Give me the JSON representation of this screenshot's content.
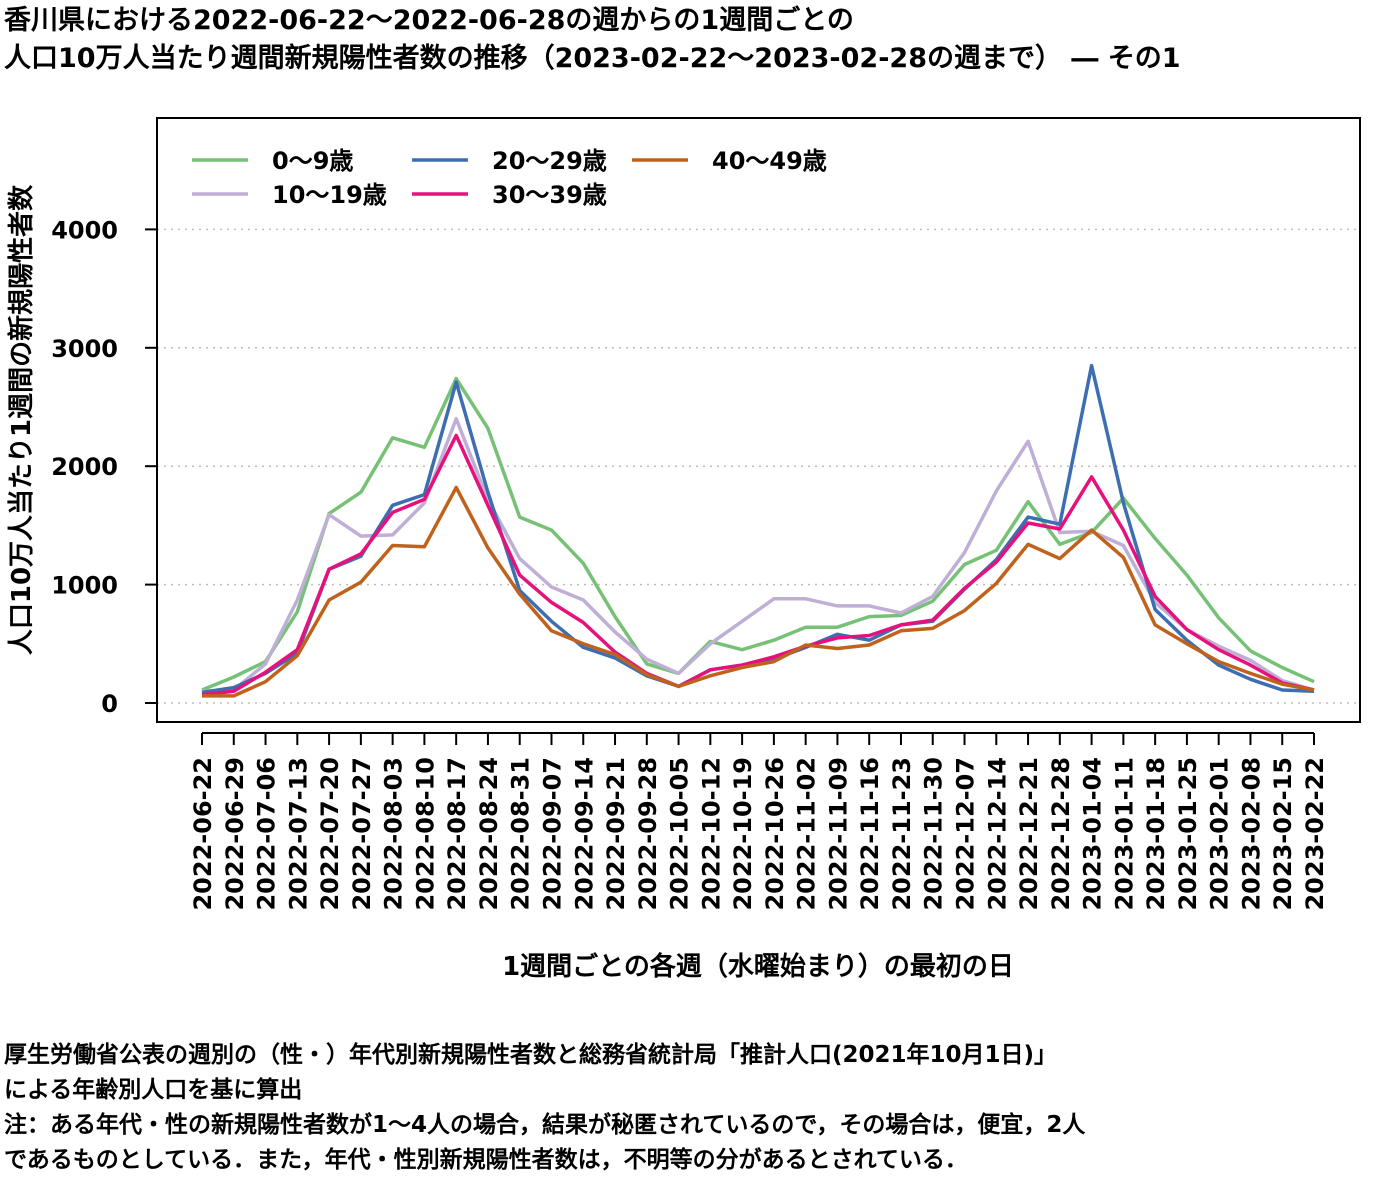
{
  "title": {
    "line1": "香川県における2022-06-22〜2022-06-28の週からの1週間ごとの",
    "line2": "人口10万人当たり週間新規陽性者数の推移（2023-02-22〜2023-02-28の週まで） ― その1"
  },
  "notes": {
    "line1": "厚生労働省公表の週別の（性・）年代別新規陽性者数と総務省統計局「推計人口(2021年10月1日)」",
    "line2": "による年齢別人口を基に算出",
    "line3": "注：ある年代・性の新規陽性者数が1〜4人の場合，結果が秘匿されているので，その場合は，便宜，2人",
    "line4": "であるものとしている．また，年代・性別新規陽性者数は，不明等の分があるとされている．"
  },
  "chart_data": {
    "type": "line",
    "xlabel": "1週間ごとの各週（水曜始まり）の最初の日",
    "ylabel": "人口10万人当たり1週間の新規陽性者数",
    "ylim": [
      0,
      4900
    ],
    "yticks": [
      0,
      1000,
      2000,
      3000,
      4000
    ],
    "grid": "horizontal dotted",
    "legend_position": "top-left",
    "categories": [
      "2022-06-22",
      "2022-06-29",
      "2022-07-06",
      "2022-07-13",
      "2022-07-20",
      "2022-07-27",
      "2022-08-03",
      "2022-08-10",
      "2022-08-17",
      "2022-08-24",
      "2022-08-31",
      "2022-09-07",
      "2022-09-14",
      "2022-09-21",
      "2022-09-28",
      "2022-10-05",
      "2022-10-12",
      "2022-10-19",
      "2022-10-26",
      "2022-11-02",
      "2022-11-09",
      "2022-11-16",
      "2022-11-23",
      "2022-11-30",
      "2022-12-07",
      "2022-12-14",
      "2022-12-21",
      "2022-12-28",
      "2023-01-04",
      "2023-01-11",
      "2023-01-18",
      "2023-01-25",
      "2023-02-01",
      "2023-02-08",
      "2023-02-15",
      "2023-02-22"
    ],
    "series": [
      {
        "name": "0〜9歳",
        "color": "#77c177",
        "values": [
          110,
          220,
          350,
          770,
          1600,
          1780,
          2240,
          2160,
          2740,
          2320,
          1570,
          1460,
          1180,
          730,
          330,
          250,
          520,
          450,
          530,
          640,
          640,
          730,
          740,
          860,
          1170,
          1290,
          1700,
          1340,
          1440,
          1730,
          1390,
          1080,
          720,
          440,
          300,
          180
        ]
      },
      {
        "name": "10〜19歳",
        "color": "#bfaed6",
        "values": [
          100,
          110,
          330,
          870,
          1590,
          1410,
          1420,
          1690,
          2400,
          1720,
          1220,
          980,
          870,
          600,
          370,
          250,
          500,
          690,
          880,
          880,
          820,
          820,
          760,
          900,
          1270,
          1790,
          2210,
          1440,
          1450,
          1330,
          850,
          620,
          480,
          360,
          190,
          110
        ]
      },
      {
        "name": "20〜29歳",
        "color": "#3d6eb1",
        "values": [
          90,
          130,
          250,
          420,
          1130,
          1240,
          1670,
          1760,
          2710,
          1780,
          950,
          690,
          470,
          380,
          230,
          140,
          280,
          320,
          370,
          470,
          580,
          530,
          660,
          690,
          960,
          1210,
          1570,
          1510,
          2850,
          1690,
          790,
          530,
          320,
          200,
          110,
          100
        ]
      },
      {
        "name": "30〜39歳",
        "color": "#e6117c",
        "values": [
          70,
          100,
          260,
          450,
          1130,
          1260,
          1610,
          1720,
          2260,
          1670,
          1080,
          850,
          680,
          430,
          250,
          140,
          280,
          320,
          390,
          480,
          550,
          570,
          660,
          700,
          970,
          1190,
          1520,
          1470,
          1910,
          1460,
          900,
          620,
          450,
          320,
          170,
          110
        ]
      },
      {
        "name": "40〜49歳",
        "color": "#c0621c",
        "values": [
          60,
          60,
          180,
          400,
          870,
          1020,
          1330,
          1320,
          1820,
          1310,
          920,
          610,
          500,
          410,
          240,
          140,
          230,
          300,
          350,
          490,
          460,
          490,
          610,
          630,
          780,
          1010,
          1340,
          1220,
          1460,
          1230,
          660,
          500,
          350,
          250,
          160,
          110
        ]
      }
    ]
  }
}
